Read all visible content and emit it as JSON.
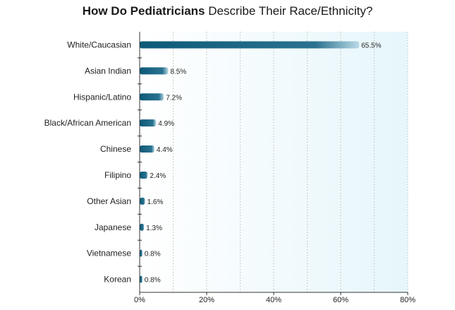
{
  "chart_data": {
    "type": "bar",
    "orientation": "horizontal",
    "title_bold": "How Do Pediatricians",
    "title_rest": " Describe Their Race/Ethnicity?",
    "categories": [
      "White/Caucasian",
      "Asian Indian",
      "Hispanic/Latino",
      "Black/African American",
      "Chinese",
      "Filipino",
      "Other Asian",
      "Japanese",
      "Vietnamese",
      "Korean"
    ],
    "values": [
      65.5,
      8.5,
      7.2,
      4.9,
      4.4,
      2.4,
      1.6,
      1.3,
      0.8,
      0.8
    ],
    "value_labels": [
      "65.5%",
      "8.5%",
      "7.2%",
      "4.9%",
      "4.4%",
      "2.4%",
      "1.6%",
      "1.3%",
      "0.8%",
      "0.8%"
    ],
    "x_ticks": [
      0,
      20,
      40,
      60,
      80
    ],
    "x_tick_labels": [
      "0%",
      "20%",
      "40%",
      "60%",
      "80%"
    ],
    "xlim": [
      0,
      80
    ],
    "grid": "vertical dotted",
    "bar_color": "#0d5a78",
    "background_gradient": [
      "#ffffff",
      "#e6f6fb"
    ]
  }
}
